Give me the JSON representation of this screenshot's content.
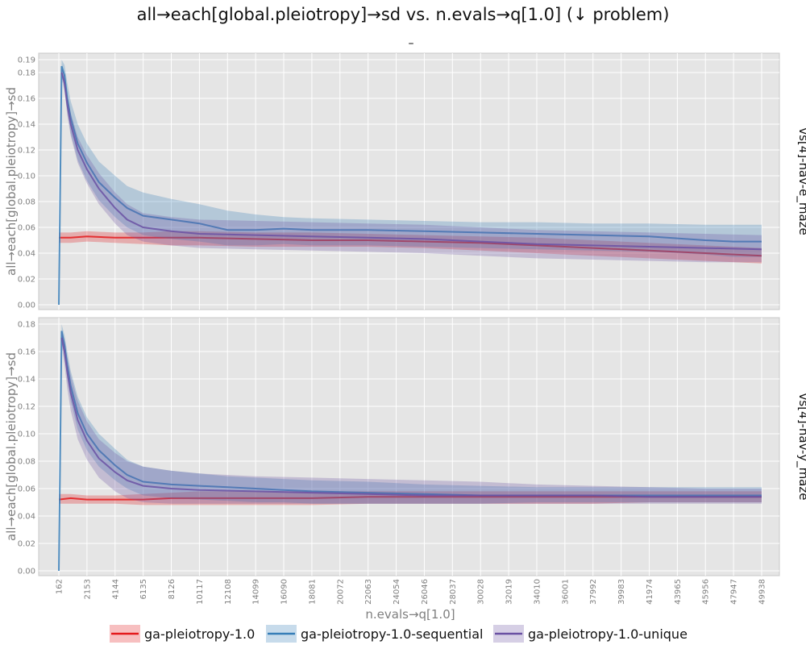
{
  "chart_data": {
    "type": "line",
    "title": "all→each[global.pleiotropy]→sd vs. n.evals→q[1.0] (↓ problem)",
    "subtitle": "–",
    "xlabel": "n.evals→q[1.0]",
    "ylabel": "all→each[global.pleiotropy]→sd",
    "x_ticks": [
      162,
      2153,
      4144,
      6135,
      8126,
      10117,
      12108,
      14099,
      16090,
      18081,
      20072,
      22063,
      24054,
      26046,
      28037,
      30028,
      32019,
      34010,
      36001,
      37992,
      39983,
      41974,
      43965,
      45956,
      47947,
      49938
    ],
    "xlim": [
      162,
      49938
    ],
    "grid": true,
    "legend_position": "bottom",
    "colors": {
      "ga-pleiotropy-1.0": "#e41a1c",
      "ga-pleiotropy-1.0-sequential": "#377eb8",
      "ga-pleiotropy-1.0-unique": "#6a51a3"
    },
    "panels": [
      {
        "facet_label": "vs[4]-nav-e_maze",
        "ylim": [
          0,
          0.19
        ],
        "y_ticks": [
          "0.00",
          "0.02",
          "0.04",
          "0.06",
          "0.08",
          "0.10",
          "0.12",
          "0.14",
          "0.16",
          "0.18",
          "0.19"
        ],
        "series": [
          {
            "name": "ga-pleiotropy-1.0",
            "x": [
              162,
              1000,
              2153,
              4144,
              6135,
              8126,
              10117,
              14099,
              18081,
              22063,
              26046,
              30028,
              34010,
              37992,
              41974,
              45956,
              49938
            ],
            "mean": [
              0.052,
              0.052,
              0.053,
              0.052,
              0.052,
              0.052,
              0.052,
              0.051,
              0.05,
              0.05,
              0.049,
              0.048,
              0.046,
              0.044,
              0.042,
              0.04,
              0.038
            ],
            "lo": [
              0.048,
              0.048,
              0.049,
              0.048,
              0.047,
              0.046,
              0.046,
              0.045,
              0.045,
              0.045,
              0.044,
              0.042,
              0.04,
              0.038,
              0.036,
              0.034,
              0.032
            ],
            "hi": [
              0.056,
              0.056,
              0.057,
              0.056,
              0.056,
              0.057,
              0.057,
              0.056,
              0.056,
              0.055,
              0.054,
              0.053,
              0.052,
              0.05,
              0.048,
              0.046,
              0.044
            ]
          },
          {
            "name": "ga-pleiotropy-1.0-sequential",
            "x": [
              162,
              360,
              560,
              760,
              1000,
              1500,
              2153,
              3000,
              4144,
              5000,
              6135,
              8126,
              10117,
              12108,
              14099,
              16090,
              18081,
              22063,
              26046,
              30028,
              34010,
              37992,
              41974,
              45956,
              47947,
              49938
            ],
            "mean": [
              0.0,
              0.185,
              0.178,
              0.16,
              0.145,
              0.125,
              0.11,
              0.095,
              0.083,
              0.075,
              0.069,
              0.066,
              0.063,
              0.058,
              0.058,
              0.059,
              0.058,
              0.058,
              0.057,
              0.056,
              0.055,
              0.054,
              0.053,
              0.05,
              0.049,
              0.049
            ],
            "lo": [
              0.0,
              0.18,
              0.17,
              0.15,
              0.133,
              0.112,
              0.096,
              0.081,
              0.068,
              0.06,
              0.054,
              0.051,
              0.049,
              0.046,
              0.046,
              0.047,
              0.046,
              0.046,
              0.045,
              0.044,
              0.043,
              0.042,
              0.041,
              0.039,
              0.037,
              0.037
            ],
            "hi": [
              0.0,
              0.19,
              0.186,
              0.172,
              0.158,
              0.14,
              0.125,
              0.111,
              0.1,
              0.092,
              0.087,
              0.082,
              0.078,
              0.073,
              0.07,
              0.068,
              0.067,
              0.066,
              0.065,
              0.064,
              0.064,
              0.063,
              0.063,
              0.062,
              0.062,
              0.062
            ]
          },
          {
            "name": "ga-pleiotropy-1.0-unique",
            "x": [
              360,
              560,
              760,
              1000,
              1500,
              2153,
              3000,
              4144,
              5000,
              6135,
              8126,
              10117,
              14099,
              18081,
              22063,
              26046,
              30028,
              34010,
              37992,
              41974,
              45956,
              49938
            ],
            "mean": [
              0.18,
              0.172,
              0.155,
              0.14,
              0.12,
              0.105,
              0.09,
              0.075,
              0.066,
              0.06,
              0.057,
              0.055,
              0.054,
              0.053,
              0.052,
              0.051,
              0.049,
              0.047,
              0.046,
              0.045,
              0.044,
              0.043
            ],
            "lo": [
              0.176,
              0.166,
              0.147,
              0.131,
              0.11,
              0.094,
              0.078,
              0.063,
              0.054,
              0.049,
              0.046,
              0.044,
              0.043,
              0.042,
              0.041,
              0.04,
              0.038,
              0.036,
              0.035,
              0.034,
              0.033,
              0.033
            ],
            "hi": [
              0.184,
              0.178,
              0.163,
              0.149,
              0.13,
              0.116,
              0.102,
              0.087,
              0.078,
              0.071,
              0.068,
              0.066,
              0.065,
              0.064,
              0.063,
              0.062,
              0.06,
              0.058,
              0.057,
              0.056,
              0.055,
              0.054
            ]
          }
        ]
      },
      {
        "facet_label": "vs[4]-nav-y_maze",
        "ylim": [
          0,
          0.18
        ],
        "y_ticks": [
          "0.00",
          "0.02",
          "0.04",
          "0.06",
          "0.08",
          "0.10",
          "0.12",
          "0.14",
          "0.16",
          "0.18"
        ],
        "series": [
          {
            "name": "ga-pleiotropy-1.0",
            "x": [
              162,
              1000,
              2153,
              4144,
              6135,
              8126,
              10117,
              14099,
              18081,
              22063,
              26046,
              30028,
              34010,
              37992,
              41974,
              45956,
              49938
            ],
            "mean": [
              0.052,
              0.053,
              0.052,
              0.052,
              0.052,
              0.053,
              0.053,
              0.053,
              0.053,
              0.054,
              0.054,
              0.054,
              0.054,
              0.054,
              0.054,
              0.054,
              0.054
            ],
            "lo": [
              0.049,
              0.049,
              0.049,
              0.049,
              0.048,
              0.048,
              0.048,
              0.048,
              0.048,
              0.049,
              0.049,
              0.049,
              0.049,
              0.049,
              0.05,
              0.05,
              0.05
            ],
            "hi": [
              0.056,
              0.056,
              0.055,
              0.055,
              0.056,
              0.057,
              0.058,
              0.058,
              0.058,
              0.058,
              0.058,
              0.058,
              0.058,
              0.058,
              0.058,
              0.058,
              0.058
            ]
          },
          {
            "name": "ga-pleiotropy-1.0-sequential",
            "x": [
              162,
              360,
              560,
              760,
              1000,
              1500,
              2153,
              3000,
              4144,
              5000,
              6135,
              8126,
              10117,
              12108,
              14099,
              16090,
              18081,
              22063,
              26046,
              30028,
              34010,
              37992,
              41974,
              45956,
              49938
            ],
            "mean": [
              0.0,
              0.175,
              0.165,
              0.15,
              0.135,
              0.115,
              0.1,
              0.088,
              0.077,
              0.07,
              0.065,
              0.063,
              0.062,
              0.061,
              0.06,
              0.059,
              0.058,
              0.057,
              0.056,
              0.055,
              0.055,
              0.055,
              0.055,
              0.055,
              0.055
            ],
            "lo": [
              0.0,
              0.17,
              0.157,
              0.14,
              0.124,
              0.103,
              0.088,
              0.076,
              0.066,
              0.06,
              0.055,
              0.053,
              0.052,
              0.051,
              0.05,
              0.05,
              0.049,
              0.049,
              0.049,
              0.049,
              0.05,
              0.05,
              0.05,
              0.05,
              0.05
            ],
            "hi": [
              0.0,
              0.18,
              0.172,
              0.16,
              0.146,
              0.127,
              0.112,
              0.1,
              0.089,
              0.081,
              0.076,
              0.073,
              0.071,
              0.069,
              0.068,
              0.067,
              0.066,
              0.065,
              0.063,
              0.062,
              0.061,
              0.061,
              0.061,
              0.061,
              0.061
            ]
          },
          {
            "name": "ga-pleiotropy-1.0-unique",
            "x": [
              360,
              560,
              760,
              1000,
              1500,
              2153,
              3000,
              4144,
              5000,
              6135,
              8126,
              10117,
              14099,
              18081,
              22063,
              26046,
              30028,
              34010,
              37992,
              41974,
              45956,
              49938
            ],
            "mean": [
              0.17,
              0.16,
              0.145,
              0.13,
              0.11,
              0.095,
              0.082,
              0.072,
              0.066,
              0.062,
              0.06,
              0.059,
              0.058,
              0.057,
              0.056,
              0.055,
              0.055,
              0.055,
              0.055,
              0.054,
              0.054,
              0.054
            ],
            "lo": [
              0.165,
              0.15,
              0.133,
              0.117,
              0.096,
              0.081,
              0.068,
              0.058,
              0.053,
              0.05,
              0.049,
              0.049,
              0.049,
              0.049,
              0.049,
              0.049,
              0.049,
              0.049,
              0.049,
              0.049,
              0.049,
              0.049
            ],
            "hi": [
              0.175,
              0.168,
              0.156,
              0.143,
              0.124,
              0.109,
              0.096,
              0.086,
              0.08,
              0.076,
              0.073,
              0.071,
              0.069,
              0.068,
              0.067,
              0.066,
              0.065,
              0.063,
              0.062,
              0.061,
              0.06,
              0.06
            ]
          }
        ]
      }
    ]
  }
}
